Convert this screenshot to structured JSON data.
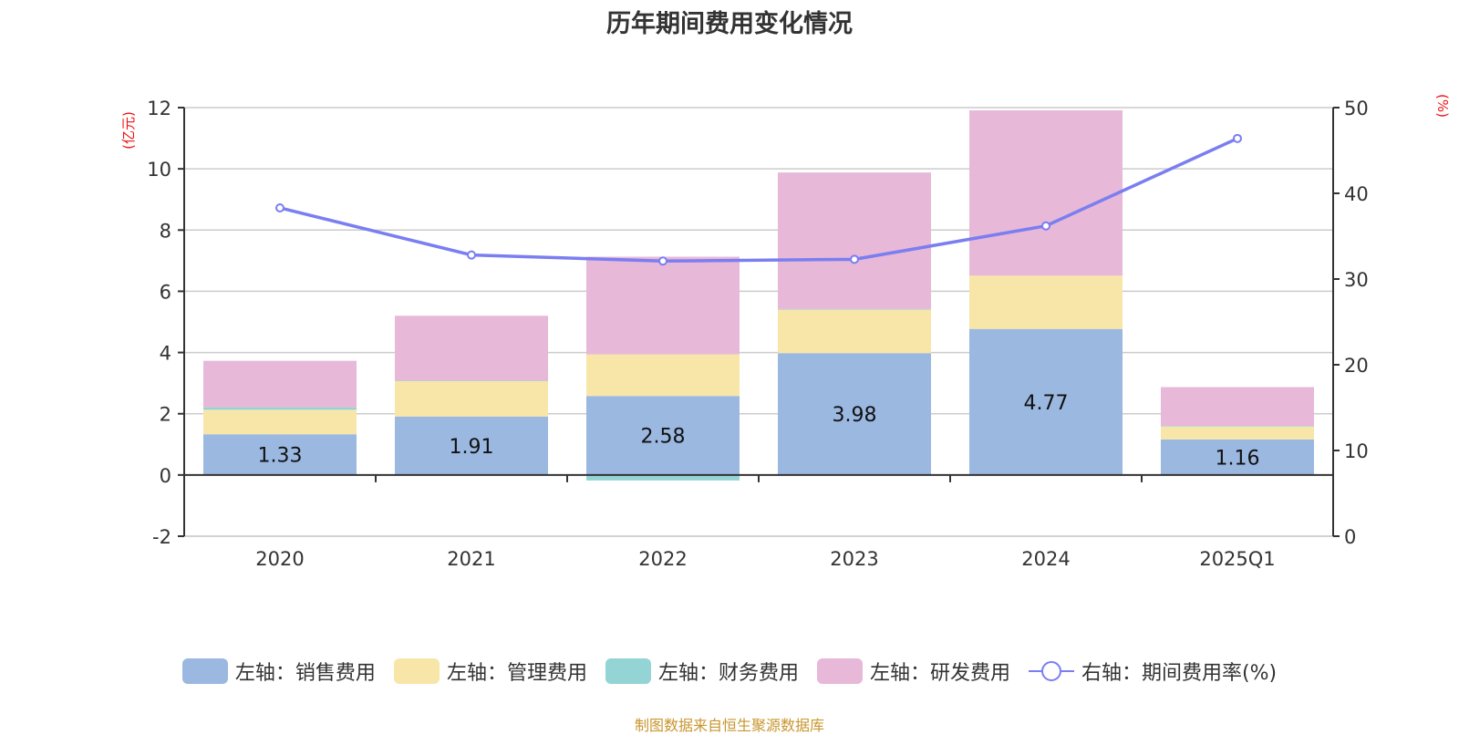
{
  "title": "历年期间费用变化情况",
  "footer": "制图数据来自恒生聚源数据库",
  "chart_data": {
    "type": "bar",
    "stacked": true,
    "title": "历年期间费用变化情况",
    "categories": [
      "2020",
      "2021",
      "2022",
      "2023",
      "2024",
      "2025Q1"
    ],
    "series": [
      {
        "name": "左轴：销售费用",
        "axis": "left",
        "type": "bar",
        "color": "#9bb8e1",
        "values": [
          1.33,
          1.91,
          2.58,
          3.98,
          4.77,
          1.16
        ],
        "show_labels": true
      },
      {
        "name": "左轴：管理费用",
        "axis": "left",
        "type": "bar",
        "color": "#f8e6a9",
        "values": [
          0.8,
          1.16,
          1.36,
          1.42,
          1.74,
          0.42
        ],
        "show_labels": false
      },
      {
        "name": "左轴：财务费用",
        "axis": "left",
        "type": "bar",
        "color": "#95d4d4",
        "values": [
          0.08,
          0.01,
          -0.18,
          0.02,
          -0.02,
          0.02
        ],
        "show_labels": false
      },
      {
        "name": "左轴：研发费用",
        "axis": "left",
        "type": "bar",
        "color": "#e7b8d8",
        "values": [
          1.52,
          2.12,
          3.19,
          4.46,
          5.4,
          1.27
        ],
        "show_labels": false
      },
      {
        "name": "右轴：期间费用率(%)",
        "axis": "right",
        "type": "line",
        "color": "#7a7ef0",
        "values": [
          38.3,
          32.8,
          32.1,
          32.3,
          36.2,
          46.4
        ],
        "show_labels": false
      }
    ],
    "left_axis": {
      "label": "(亿元)",
      "min": -2,
      "max": 12,
      "ticks": [
        -2,
        0,
        2,
        4,
        6,
        8,
        10,
        12
      ]
    },
    "right_axis": {
      "label": "(%)",
      "min": 0,
      "max": 50,
      "ticks": [
        0,
        10,
        20,
        30,
        40,
        50
      ]
    },
    "grid": true,
    "legend_position": "bottom"
  }
}
